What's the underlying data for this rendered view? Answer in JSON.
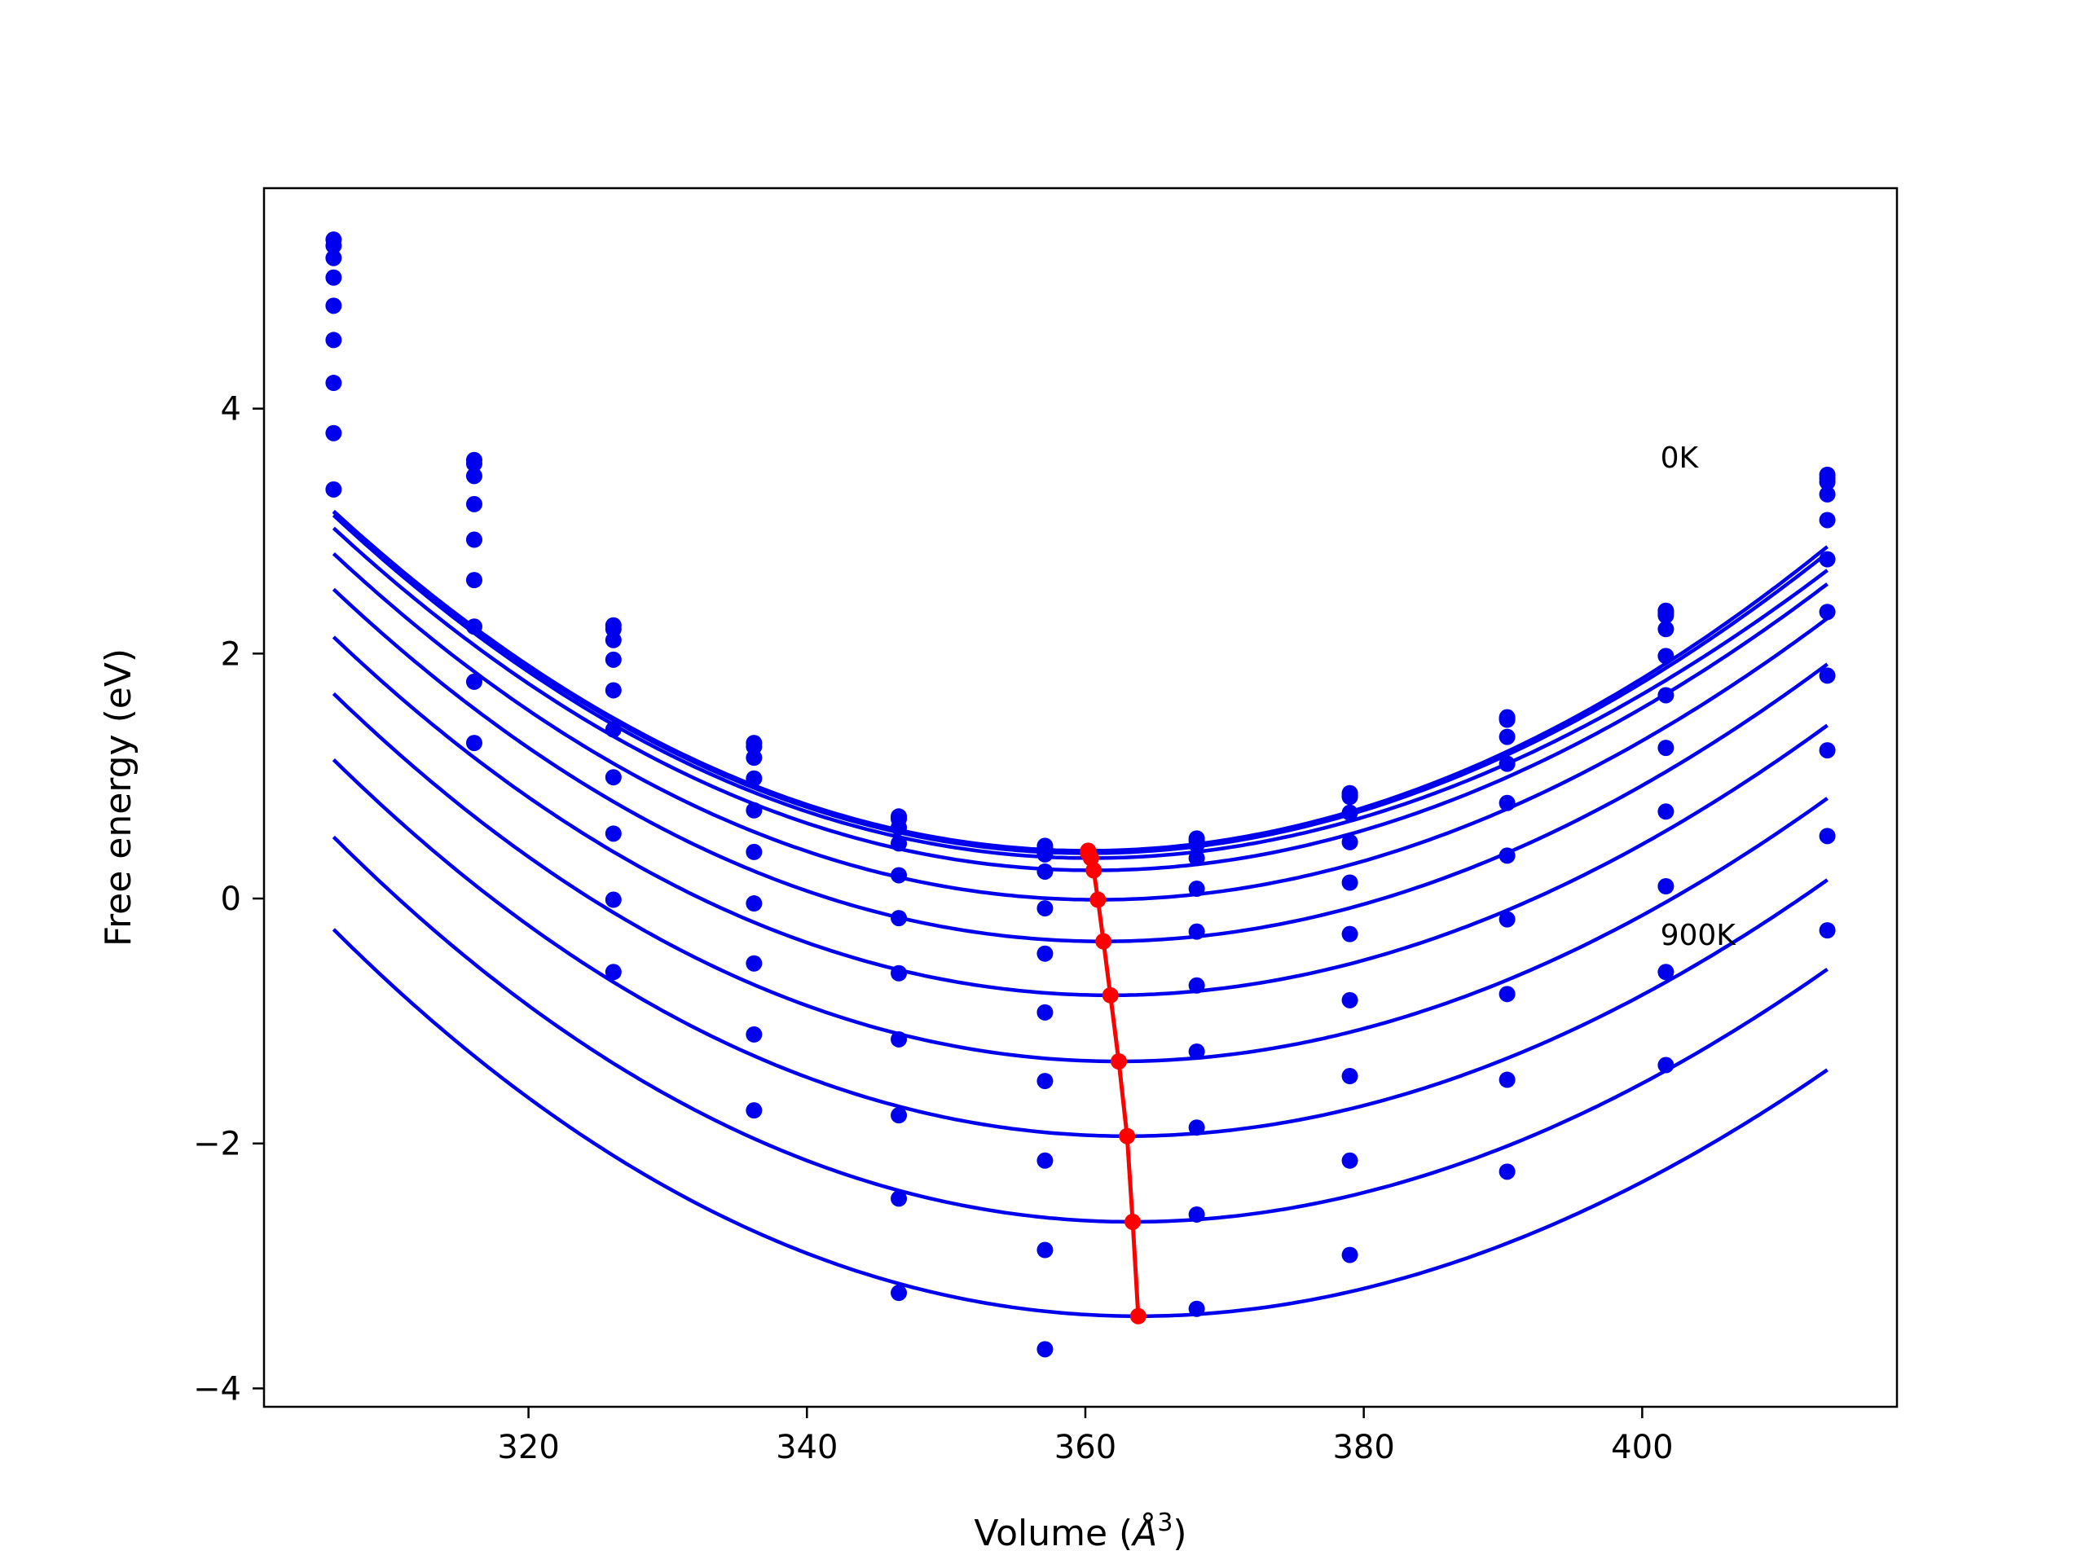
{
  "chart_data": {
    "type": "line",
    "title": "",
    "xlabel": "Volume (Å³)",
    "xlabel_prefix": "Volume (",
    "xlabel_unit": "Å",
    "xlabel_power": "3",
    "xlabel_suffix": ")",
    "ylabel": "Free energy (eV)",
    "xlim": [
      301.0,
      418.3
    ],
    "ylim": [
      -4.15,
      5.8
    ],
    "xticks": [
      320,
      340,
      360,
      380,
      400
    ],
    "yticks": [
      -4,
      -2,
      0,
      2,
      4
    ],
    "ytick_labels": [
      "−4",
      "−2",
      "0",
      "2",
      "4"
    ],
    "grid": false,
    "legend": "none",
    "x": [
      306.0,
      316.1,
      326.1,
      336.2,
      346.6,
      357.1,
      368.0,
      379.0,
      390.3,
      401.7,
      413.3
    ],
    "series_color": "#0000ee",
    "minimum_color": "#ff0000",
    "series": [
      {
        "values": [
          5.38,
          3.58,
          2.23,
          1.27,
          0.67,
          0.43,
          0.49,
          0.86,
          1.48,
          2.33,
          3.43
        ]
      },
      {
        "values": [
          5.33,
          3.55,
          2.2,
          1.24,
          0.65,
          0.41,
          0.47,
          0.84,
          1.46,
          2.31,
          3.4
        ]
      },
      {
        "values": [
          5.23,
          3.45,
          2.11,
          1.15,
          0.58,
          0.36,
          0.44,
          0.83,
          1.47,
          2.35,
          3.46
        ]
      },
      {
        "values": [
          5.07,
          3.22,
          1.95,
          0.98,
          0.45,
          0.22,
          0.33,
          0.7,
          1.32,
          2.2,
          3.3
        ]
      },
      {
        "values": [
          4.84,
          2.93,
          1.7,
          0.72,
          0.19,
          -0.08,
          0.08,
          0.46,
          1.1,
          1.98,
          3.09
        ]
      },
      {
        "values": [
          4.56,
          2.6,
          1.38,
          0.38,
          -0.16,
          -0.45,
          -0.27,
          0.13,
          0.78,
          1.66,
          2.77
        ]
      },
      {
        "values": [
          4.21,
          2.22,
          0.99,
          -0.04,
          -0.61,
          -0.93,
          -0.71,
          -0.29,
          0.35,
          1.23,
          2.34
        ]
      },
      {
        "values": [
          3.8,
          1.77,
          0.53,
          -0.53,
          -1.15,
          -1.49,
          -1.25,
          -0.83,
          -0.17,
          0.71,
          1.82
        ]
      },
      {
        "values": [
          3.34,
          1.27,
          -0.01,
          -1.11,
          -1.77,
          -2.14,
          -1.87,
          -1.45,
          -0.78,
          0.1,
          1.21
        ]
      },
      {
        "values": [
          null,
          null,
          -0.6,
          -1.73,
          -2.45,
          -2.87,
          -2.58,
          -2.14,
          -1.48,
          -0.6,
          0.51
        ]
      },
      {
        "values": [
          null,
          null,
          null,
          null,
          -3.22,
          -3.68,
          -3.35,
          -2.91,
          -2.23,
          -1.36,
          -0.26
        ]
      }
    ],
    "fits": [
      {
        "v0": 360.2,
        "e0": 0.39,
        "a": 0.000912,
        "b": -5.9e-07
      },
      {
        "v0": 360.2,
        "e0": 0.37,
        "a": 0.0009085,
        "b": -7.4e-07
      },
      {
        "v0": 360.4,
        "e0": 0.33,
        "a": 0.0008922,
        "b": -9.9e-07
      },
      {
        "v0": 360.6,
        "e0": 0.23,
        "a": 0.0008889,
        "b": -8.9e-07
      },
      {
        "v0": 360.9,
        "e0": -0.01,
        "a": 0.000886,
        "b": -9.4e-07
      },
      {
        "v0": 361.3,
        "e0": -0.35,
        "a": 0.000887,
        "b": -9.6e-07
      },
      {
        "v0": 361.8,
        "e0": -0.79,
        "a": 0.0008831,
        "b": -1.01e-06
      },
      {
        "v0": 362.4,
        "e0": -1.33,
        "a": 0.0008837,
        "b": -1.07e-06
      },
      {
        "v0": 363.0,
        "e0": -1.94,
        "a": 0.0008827,
        "b": -1.11e-06
      },
      {
        "v0": 363.4,
        "e0": -2.64,
        "a": 0.0008867,
        "b": -1.17e-06
      },
      {
        "v0": 363.8,
        "e0": -3.41,
        "a": 0.0008782,
        "b": -1.16e-06
      }
    ],
    "minimum_line": {
      "x": [
        360.2,
        360.2,
        360.4,
        360.6,
        360.9,
        361.3,
        361.8,
        362.4,
        363.0,
        363.4,
        363.8
      ],
      "y": [
        0.39,
        0.37,
        0.33,
        0.23,
        -0.01,
        -0.35,
        -0.79,
        -1.33,
        -1.94,
        -2.64,
        -3.41
      ]
    },
    "annotations": [
      {
        "text": "0K",
        "x": 401.3,
        "y": 3.52
      },
      {
        "text": "900K",
        "x": 401.3,
        "y": -0.38
      }
    ]
  }
}
